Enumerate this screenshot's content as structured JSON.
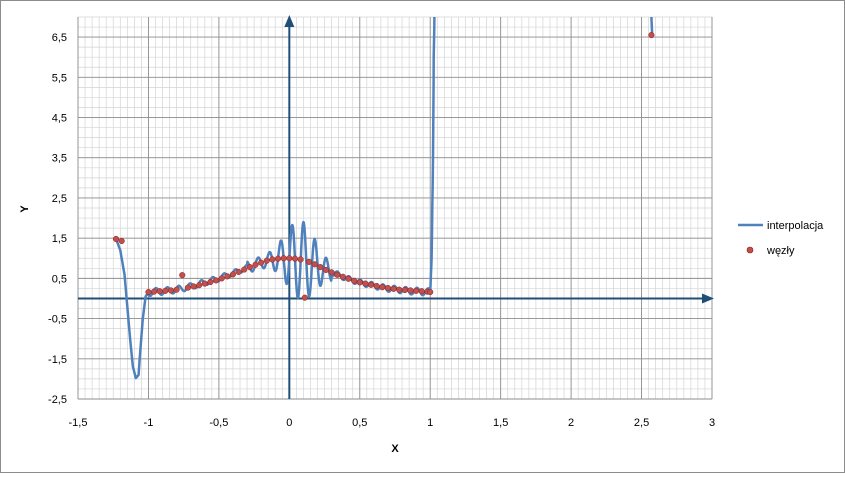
{
  "chart_data": {
    "type": "line",
    "xlabel": "X",
    "ylabel": "Y",
    "xlim": [
      -1.5,
      3
    ],
    "ylim": [
      -2.5,
      7
    ],
    "x_ticks": [
      "-1,5",
      "-1",
      "-0,5",
      "0",
      "0,5",
      "1",
      "1,5",
      "2",
      "2,5",
      "3"
    ],
    "y_ticks": [
      "-2,5",
      "-1,5",
      "-0,5",
      "0,5",
      "1,5",
      "2,5",
      "3,5",
      "4,5",
      "5,5",
      "6,5"
    ],
    "grid": true,
    "legend_position": "right",
    "series": [
      {
        "name": "interpolacja",
        "kind": "line",
        "color": "#4f81bd",
        "points": [
          [
            -1.23,
            1.48
          ],
          [
            -1.2,
            1.2
          ],
          [
            -1.17,
            0.6
          ],
          [
            -1.15,
            -0.2
          ],
          [
            -1.13,
            -1.0
          ],
          [
            -1.11,
            -1.7
          ],
          [
            -1.09,
            -1.98
          ],
          [
            -1.07,
            -1.9
          ],
          [
            -1.06,
            -1.4
          ],
          [
            -1.04,
            -0.5
          ],
          [
            -1.02,
            0.05
          ],
          [
            -1.0,
            0.15
          ],
          [
            -0.95,
            0.17
          ],
          [
            -0.9,
            0.18
          ],
          [
            -0.85,
            0.2
          ],
          [
            -0.8,
            0.22
          ],
          [
            -0.75,
            0.26
          ],
          [
            -0.7,
            0.3
          ],
          [
            -0.65,
            0.35
          ],
          [
            -0.6,
            0.4
          ],
          [
            -0.55,
            0.45
          ],
          [
            -0.5,
            0.5
          ],
          [
            -0.45,
            0.57
          ],
          [
            -0.4,
            0.63
          ],
          [
            -0.35,
            0.7
          ],
          [
            -0.3,
            0.77
          ],
          [
            -0.25,
            0.83
          ],
          [
            -0.2,
            0.9
          ],
          [
            -0.15,
            0.94
          ],
          [
            -0.1,
            0.98
          ],
          [
            -0.05,
            1.0
          ],
          [
            0.0,
            1.0
          ],
          [
            0.05,
            0.98
          ],
          [
            0.1,
            0.94
          ],
          [
            0.15,
            0.88
          ],
          [
            0.2,
            0.8
          ],
          [
            0.25,
            0.72
          ],
          [
            0.3,
            0.65
          ],
          [
            0.35,
            0.58
          ],
          [
            0.4,
            0.51
          ],
          [
            0.45,
            0.45
          ],
          [
            0.5,
            0.4
          ],
          [
            0.55,
            0.36
          ],
          [
            0.6,
            0.32
          ],
          [
            0.65,
            0.28
          ],
          [
            0.7,
            0.25
          ],
          [
            0.75,
            0.23
          ],
          [
            0.8,
            0.21
          ],
          [
            0.85,
            0.19
          ],
          [
            0.9,
            0.18
          ],
          [
            0.95,
            0.17
          ],
          [
            1.0,
            0.16
          ],
          [
            1.01,
            1.0
          ],
          [
            1.02,
            3.5
          ],
          [
            1.025,
            6.0
          ],
          [
            1.03,
            7.0
          ]
        ],
        "segment_2": [
          [
            2.57,
            7.0
          ],
          [
            2.575,
            6.6
          ]
        ]
      },
      {
        "name": "węzły",
        "kind": "scatter",
        "color": "#c0504d",
        "points": [
          [
            -1.23,
            1.48
          ],
          [
            -1.19,
            1.43
          ],
          [
            -1.0,
            0.16
          ],
          [
            -0.96,
            0.17
          ],
          [
            -0.92,
            0.18
          ],
          [
            -0.88,
            0.19
          ],
          [
            -0.84,
            0.2
          ],
          [
            -0.8,
            0.22
          ],
          [
            -0.76,
            0.58
          ],
          [
            -0.72,
            0.27
          ],
          [
            -0.68,
            0.3
          ],
          [
            -0.64,
            0.33
          ],
          [
            -0.6,
            0.37
          ],
          [
            -0.56,
            0.41
          ],
          [
            -0.52,
            0.45
          ],
          [
            -0.48,
            0.5
          ],
          [
            -0.44,
            0.55
          ],
          [
            -0.4,
            0.6
          ],
          [
            -0.36,
            0.66
          ],
          [
            -0.32,
            0.72
          ],
          [
            -0.28,
            0.78
          ],
          [
            -0.24,
            0.84
          ],
          [
            -0.2,
            0.89
          ],
          [
            -0.16,
            0.94
          ],
          [
            -0.12,
            0.97
          ],
          [
            -0.08,
            0.99
          ],
          [
            -0.04,
            1.0
          ],
          [
            0.0,
            1.0
          ],
          [
            0.04,
            0.99
          ],
          [
            0.08,
            0.97
          ],
          [
            0.11,
            0.02
          ],
          [
            0.14,
            0.91
          ],
          [
            0.18,
            0.85
          ],
          [
            0.22,
            0.78
          ],
          [
            0.26,
            0.71
          ],
          [
            0.3,
            0.65
          ],
          [
            0.34,
            0.59
          ],
          [
            0.38,
            0.54
          ],
          [
            0.42,
            0.49
          ],
          [
            0.46,
            0.44
          ],
          [
            0.5,
            0.4
          ],
          [
            0.54,
            0.37
          ],
          [
            0.58,
            0.34
          ],
          [
            0.62,
            0.31
          ],
          [
            0.66,
            0.28
          ],
          [
            0.7,
            0.26
          ],
          [
            0.74,
            0.24
          ],
          [
            0.78,
            0.22
          ],
          [
            0.82,
            0.21
          ],
          [
            0.86,
            0.2
          ],
          [
            0.9,
            0.19
          ],
          [
            0.94,
            0.18
          ],
          [
            0.98,
            0.17
          ],
          [
            1.0,
            0.16
          ],
          [
            2.57,
            6.55
          ]
        ]
      }
    ]
  }
}
